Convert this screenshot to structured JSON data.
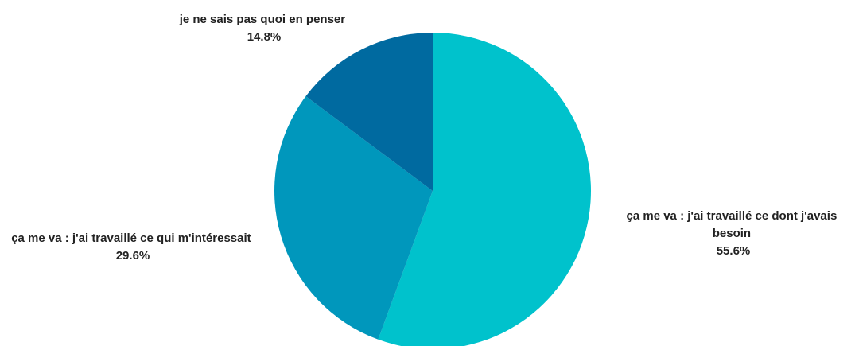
{
  "chart_data": {
    "type": "pie",
    "title": "",
    "start": "top",
    "direction": "clockwise",
    "slices": [
      {
        "label": "ça me va : j'ai travaillé ce dont j'avais besoin",
        "label_lines": [
          "ça me va : j'ai travaillé ce dont j'avais",
          "besoin"
        ],
        "value": 55.6,
        "value_label": "55.6%",
        "color": "#00c2cc"
      },
      {
        "label": "ça me va : j'ai travaillé ce qui m'intéressait",
        "label_lines": [
          "ça me va : j'ai travaillé ce qui m'intéressait"
        ],
        "value": 29.6,
        "value_label": "29.6%",
        "color": "#0097bc"
      },
      {
        "label": "je ne sais pas quoi en penser",
        "label_lines": [
          "je ne sais pas quoi en penser"
        ],
        "value": 14.8,
        "value_label": "14.8%",
        "color": "#006aa0"
      }
    ]
  }
}
